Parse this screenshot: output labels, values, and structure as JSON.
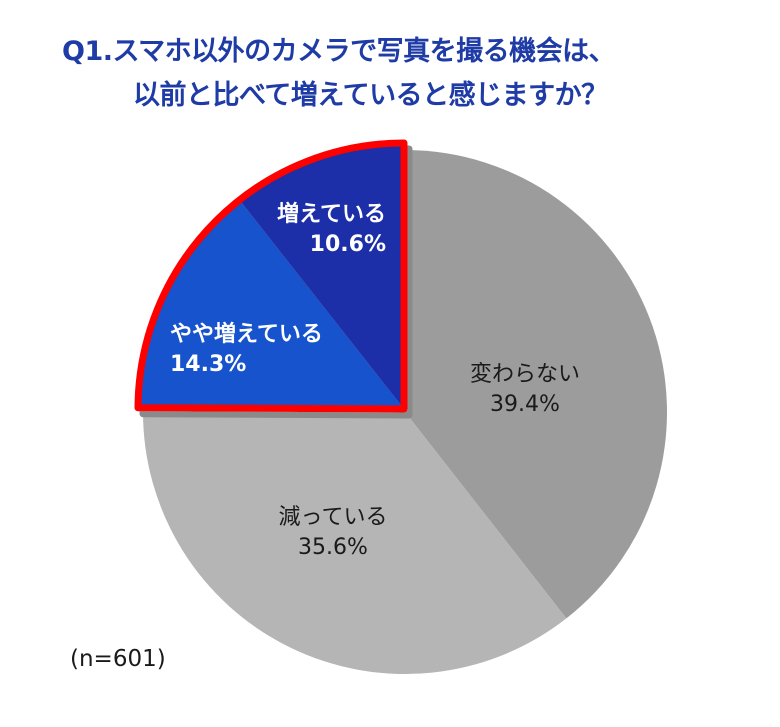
{
  "title": {
    "line1": "Q1.スマホ以外のカメラで写真を撮る機会は、",
    "line2": "以前と比べて増えていると感じますか？"
  },
  "colors": {
    "title": "#1e3ba6",
    "increased": "#1a2fa8",
    "slightly_increased": "#1752cc",
    "unchanged": "#9c9c9c",
    "decreased": "#b5b5b5",
    "highlight_border": "#ff0000"
  },
  "sample_size": "(n=601)",
  "labels": {
    "unchanged": {
      "name": "変わらない",
      "value": "39.4%"
    },
    "decreased": {
      "name": "減っている",
      "value": "35.6%"
    },
    "slightly_increased": {
      "name": "やや増えている",
      "value": "14.3%"
    },
    "increased": {
      "name": "増えている",
      "value": "10.6%"
    }
  },
  "chart_data": {
    "type": "pie",
    "title": "Q1.スマホ以外のカメラで写真を撮る機会は、以前と比べて増えていると感じますか？",
    "categories": [
      "変わらない",
      "減っている",
      "やや増えている",
      "増えている"
    ],
    "values": [
      39.4,
      35.6,
      14.3,
      10.6
    ],
    "unit": "%",
    "start_angle": "12 o'clock, clockwise",
    "highlighted": [
      "やや増えている",
      "増えている"
    ],
    "highlight_style": "exploded quadrant with red outline",
    "annotation": "(n=601)"
  }
}
